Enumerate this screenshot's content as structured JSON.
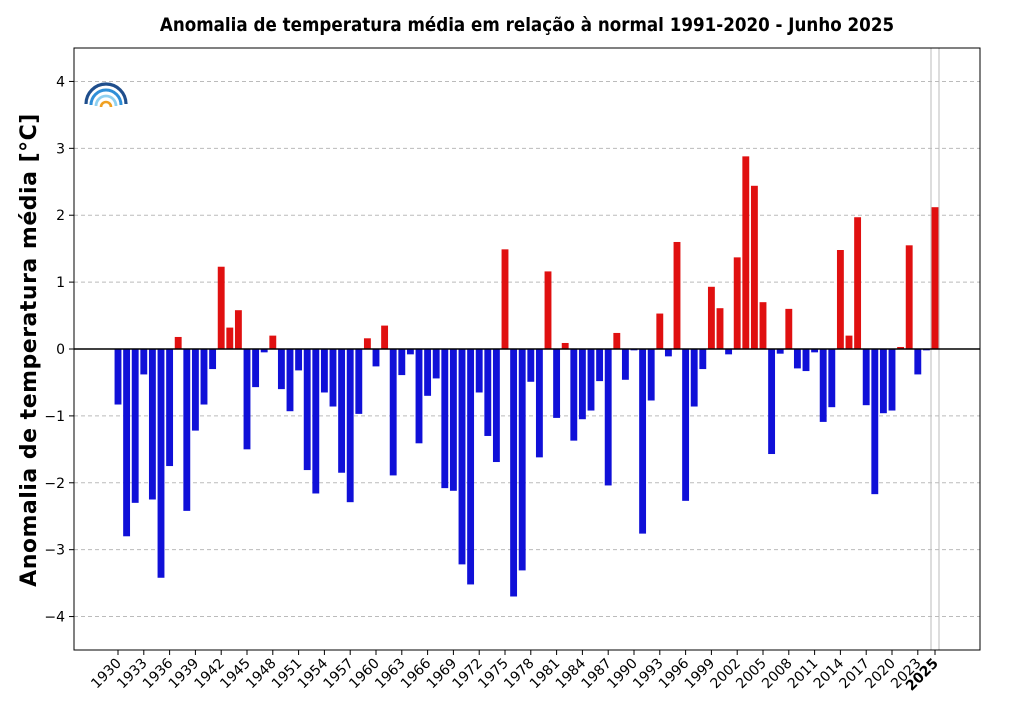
{
  "chart_data": {
    "type": "bar",
    "title": "Anomalia de temperatura média em relação à normal 1991-2020 - Junho 2025",
    "xlabel": "",
    "ylabel": "Anomalia de temperatura média [°C]",
    "ylim": [
      -4.5,
      4.5
    ],
    "yticks": [
      -4,
      -3,
      -2,
      -1,
      0,
      1,
      2,
      3,
      4
    ],
    "xticks": [
      1930,
      1933,
      1936,
      1939,
      1942,
      1945,
      1948,
      1951,
      1954,
      1957,
      1960,
      1963,
      1966,
      1969,
      1972,
      1975,
      1978,
      1981,
      1984,
      1987,
      1990,
      1993,
      1996,
      1999,
      2002,
      2005,
      2008,
      2011,
      2014,
      2017,
      2020,
      2023,
      2025
    ],
    "highlight_tick": 2025,
    "grid": true,
    "colors": {
      "positive": "#e01010",
      "negative": "#1010d8"
    },
    "logo": "rainbow-logo",
    "x": [
      1930,
      1931,
      1932,
      1933,
      1934,
      1935,
      1936,
      1937,
      1938,
      1939,
      1940,
      1941,
      1942,
      1943,
      1944,
      1945,
      1946,
      1947,
      1948,
      1949,
      1950,
      1951,
      1952,
      1953,
      1954,
      1955,
      1956,
      1957,
      1958,
      1959,
      1960,
      1961,
      1962,
      1963,
      1964,
      1965,
      1966,
      1967,
      1968,
      1969,
      1970,
      1971,
      1972,
      1973,
      1974,
      1975,
      1976,
      1977,
      1978,
      1979,
      1980,
      1981,
      1982,
      1983,
      1984,
      1985,
      1986,
      1987,
      1988,
      1989,
      1990,
      1991,
      1992,
      1993,
      1994,
      1995,
      1996,
      1997,
      1998,
      1999,
      2000,
      2001,
      2002,
      2003,
      2004,
      2005,
      2006,
      2007,
      2008,
      2009,
      2010,
      2011,
      2012,
      2013,
      2014,
      2015,
      2016,
      2017,
      2018,
      2019,
      2020,
      2021,
      2022,
      2023,
      2024,
      2025
    ],
    "values": [
      -0.83,
      -2.8,
      -2.3,
      -0.38,
      -2.25,
      -3.42,
      -1.75,
      0.18,
      -2.42,
      -1.22,
      -0.83,
      -0.3,
      1.23,
      0.32,
      0.58,
      -1.5,
      -0.57,
      -0.05,
      0.2,
      -0.6,
      -0.93,
      -0.32,
      -1.81,
      -2.16,
      -0.65,
      -0.86,
      -1.85,
      -2.29,
      -0.97,
      0.16,
      -0.26,
      0.35,
      -1.89,
      -0.39,
      -0.08,
      -1.41,
      -0.7,
      -0.44,
      -2.08,
      -2.12,
      -3.22,
      -3.52,
      -0.65,
      -1.3,
      -1.69,
      1.49,
      -3.7,
      -3.31,
      -0.49,
      -1.62,
      1.16,
      -1.03,
      0.09,
      -1.37,
      -1.05,
      -0.92,
      -0.48,
      -2.04,
      0.24,
      -0.46,
      -0.02,
      -2.76,
      -0.77,
      0.53,
      -0.11,
      1.6,
      -2.27,
      -0.86,
      -0.3,
      0.93,
      0.61,
      -0.08,
      1.37,
      2.88,
      2.44,
      0.7,
      -1.57,
      -0.07,
      0.6,
      -0.29,
      -0.33,
      -0.05,
      -1.09,
      -0.87,
      1.48,
      0.2,
      1.97,
      -0.84,
      -2.17,
      -0.96,
      -0.92,
      0.03,
      1.55,
      -0.38,
      -0.02,
      2.12
    ]
  }
}
